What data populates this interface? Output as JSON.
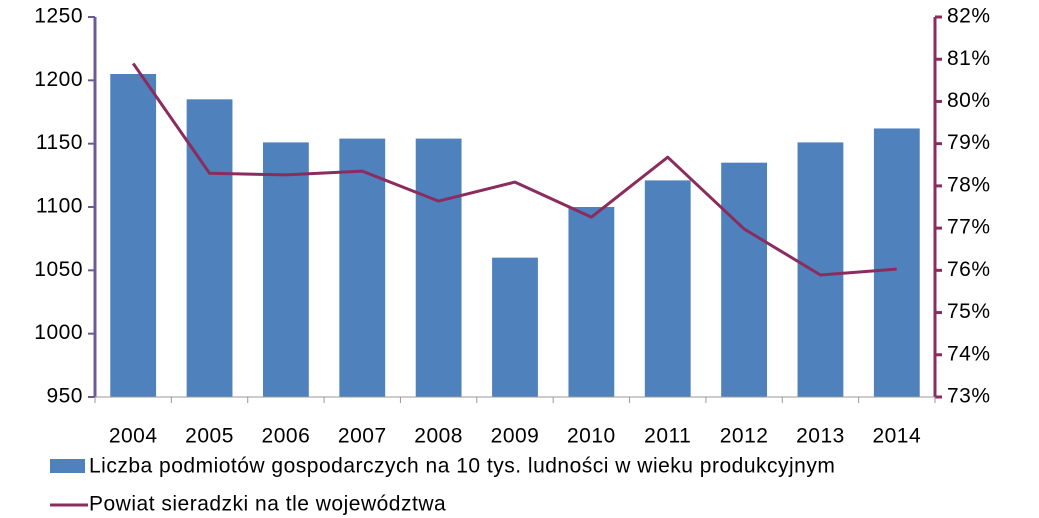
{
  "chart_data": {
    "type": "bar",
    "categories": [
      "2004",
      "2005",
      "2006",
      "2007",
      "2008",
      "2009",
      "2010",
      "2011",
      "2012",
      "2013",
      "2014"
    ],
    "series": [
      {
        "name": "Liczba podmiotów gospodarczych na 10 tys. ludności w wieku produkcyjnym",
        "type": "bar",
        "color": "#4f81bd",
        "values": [
          1205,
          1185,
          1151,
          1154,
          1154,
          1060,
          1100,
          1121,
          1135,
          1151,
          1162
        ]
      },
      {
        "name": "Powiat sieradzki na tle województwa",
        "type": "line",
        "axis": "y2",
        "color": "#8b2c5e",
        "values": [
          80.9,
          78.3,
          78.26,
          78.35,
          77.64,
          78.09,
          77.26,
          78.68,
          76.98,
          75.89,
          76.03
        ]
      }
    ],
    "ylim": [
      950,
      1250
    ],
    "yticks": [
      950,
      1000,
      1050,
      1100,
      1150,
      1200,
      1250
    ],
    "y2lim": [
      73,
      82
    ],
    "y2ticks": [
      {
        "value": 73,
        "label": "73%"
      },
      {
        "value": 74,
        "label": "74%"
      },
      {
        "value": 75,
        "label": "75%"
      },
      {
        "value": 76,
        "label": "76%"
      },
      {
        "value": 77,
        "label": "77%"
      },
      {
        "value": 78,
        "label": "78%"
      },
      {
        "value": 79,
        "label": "79%"
      },
      {
        "value": 80,
        "label": "80%"
      },
      {
        "value": 81,
        "label": "81%"
      },
      {
        "value": 82,
        "label": "82%"
      }
    ],
    "legend": "bottom",
    "grid": false
  }
}
